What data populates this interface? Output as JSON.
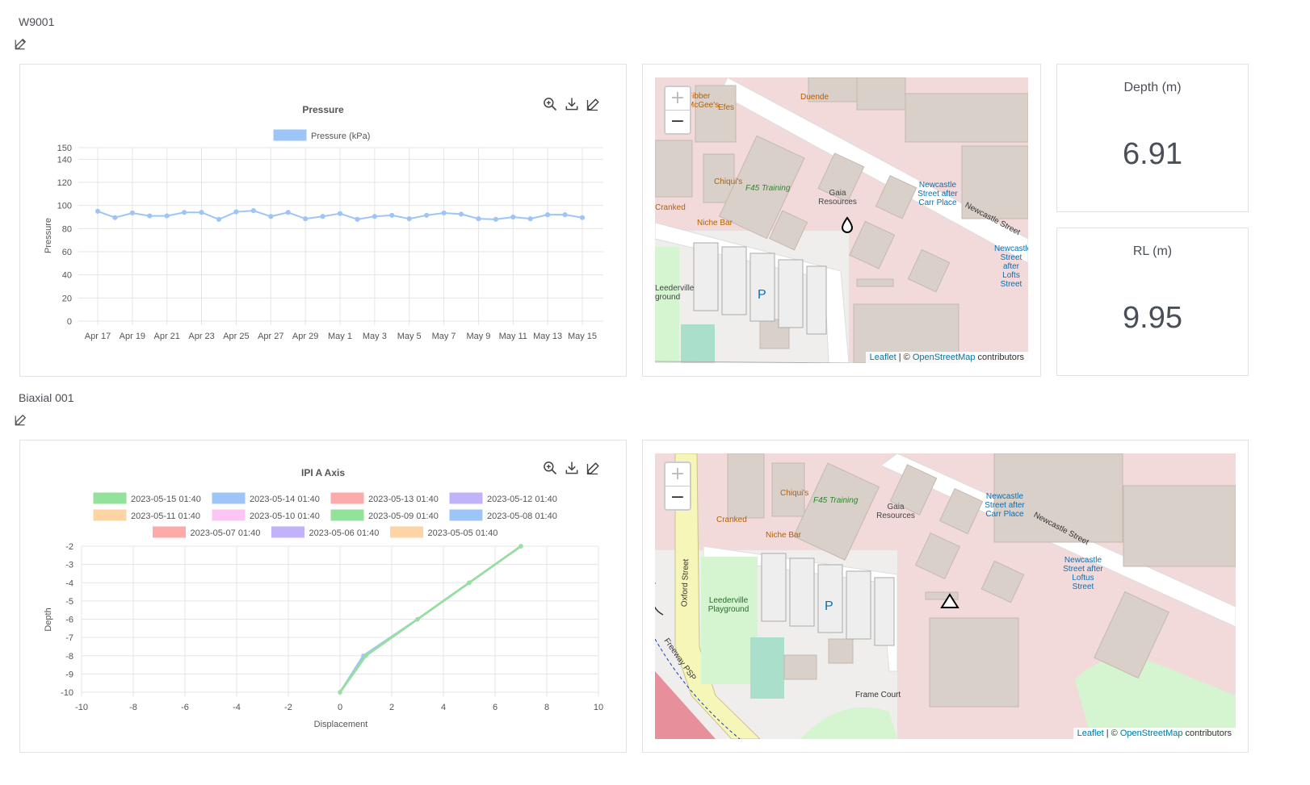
{
  "sections": [
    {
      "title": "W9001",
      "chart": {
        "title": "Pressure",
        "legend": "Pressure (kPa)",
        "ylabel": "Pressure",
        "map_attribution": {
          "leaflet": "Leaflet",
          "sep": " | © ",
          "osm": "OpenStreetMap",
          "suffix": " contributors"
        }
      },
      "stats": [
        {
          "label": "Depth (m)",
          "value": "6.91"
        },
        {
          "label": "RL (m)",
          "value": "9.95"
        }
      ]
    },
    {
      "title": "Biaxial 001",
      "chart": {
        "title": "IPI A Axis",
        "xlabel": "Displacement",
        "ylabel": "Depth"
      }
    }
  ],
  "map1_labels": {
    "gaia": "Gaia Resources",
    "newcastle": "Newcastle Street",
    "chiquis": "Chiqui's",
    "f45": "F45 Training",
    "niche": "Niche Bar",
    "duende": "Duende",
    "fibber": "Fibber McGee's",
    "efes": "Efes",
    "cranked": "Cranked",
    "leederville": "Leederville ground",
    "stop1": "Newcastle Street after Carr Place",
    "stop2": "Newcastle Street after Lofts Street",
    "parking": "P"
  },
  "map2_labels": {
    "gaia": "Gaia Resources",
    "newcastle": "Newcastle Street",
    "chiquis": "Chiqui's",
    "f45": "F45 Training",
    "niche": "Niche Bar",
    "cranked": "Cranked",
    "oxford": "Oxford Street",
    "playground": "Leederville Playground",
    "frame": "Frame Court",
    "freeway": "Freeway PSP",
    "stop1": "Newcastle Street after Carr Place",
    "stop2": "Newcastle Street after Loftus Street",
    "parking": "P"
  },
  "colors": {
    "series_blue": "#9ec5f8",
    "series_green": "#93e29b",
    "text": "#4a4f57",
    "border": "#dfe2e6"
  },
  "chart_data": [
    {
      "type": "line",
      "title": "Pressure",
      "ylabel": "Pressure",
      "x_ticks": [
        "Apr 17",
        "Apr 19",
        "Apr 21",
        "Apr 23",
        "Apr 25",
        "Apr 27",
        "Apr 29",
        "May 1",
        "May 3",
        "May 5",
        "May 7",
        "May 9",
        "May 11",
        "May 13",
        "May 15"
      ],
      "y_ticks": [
        0,
        20,
        40,
        60,
        80,
        100,
        120,
        140,
        150
      ],
      "ylim": [
        0,
        150
      ],
      "grid": true,
      "legend_position": "top",
      "series": [
        {
          "name": "Pressure (kPa)",
          "color": "#9ec5f8",
          "x": [
            "Apr 17",
            "Apr 18",
            "Apr 19",
            "Apr 20",
            "Apr 21",
            "Apr 22",
            "Apr 23",
            "Apr 24",
            "Apr 25",
            "Apr 26",
            "Apr 27",
            "Apr 28",
            "Apr 29",
            "Apr 30",
            "May 1",
            "May 2",
            "May 3",
            "May 4",
            "May 5",
            "May 6",
            "May 7",
            "May 8",
            "May 9",
            "May 10",
            "May 11",
            "May 12",
            "May 13",
            "May 14",
            "May 15"
          ],
          "values": [
            95,
            89.5,
            93.5,
            91,
            91,
            94,
            94,
            88,
            94.5,
            95.5,
            90.5,
            94,
            88.5,
            90.5,
            93,
            88,
            90.5,
            91.5,
            88.5,
            91.5,
            93.5,
            92.5,
            88.5,
            88,
            90,
            88.5,
            92,
            92,
            89.5
          ]
        }
      ]
    },
    {
      "type": "line",
      "title": "IPI A Axis",
      "xlabel": "Displacement",
      "ylabel": "Depth",
      "xlim": [
        -10,
        10
      ],
      "ylim": [
        -10,
        -2
      ],
      "x_ticks": [
        -10,
        -8,
        -6,
        -4,
        -2,
        0,
        2,
        4,
        6,
        8,
        10
      ],
      "y_ticks": [
        -2,
        -3,
        -4,
        -5,
        -6,
        -7,
        -8,
        -9,
        -10
      ],
      "grid": true,
      "legend_position": "top",
      "series": [
        {
          "name": "2023-05-15 01:40",
          "color": "#93e29b",
          "points": [
            [
              0,
              -10
            ],
            [
              1,
              -8
            ],
            [
              3,
              -6
            ],
            [
              5,
              -4
            ],
            [
              7,
              -2
            ]
          ]
        },
        {
          "name": "2023-05-14 01:40",
          "color": "#9ec5f8",
          "points": [
            [
              0,
              -10
            ],
            [
              1,
              -8
            ],
            [
              3,
              -6
            ],
            [
              5,
              -4
            ],
            [
              7,
              -2
            ]
          ]
        },
        {
          "name": "2023-05-13 01:40",
          "color": "#fcaaaa",
          "points": [
            [
              0,
              -10
            ],
            [
              1,
              -8
            ],
            [
              3,
              -6
            ],
            [
              5,
              -4
            ],
            [
              7,
              -2
            ]
          ]
        },
        {
          "name": "2023-05-12 01:40",
          "color": "#c2b2f9",
          "points": [
            [
              0,
              -10
            ],
            [
              1,
              -8
            ],
            [
              3,
              -6
            ],
            [
              5,
              -4
            ],
            [
              7,
              -2
            ]
          ]
        },
        {
          "name": "2023-05-11 01:40",
          "color": "#fdd4a4",
          "points": [
            [
              0,
              -10
            ],
            [
              1,
              -8
            ],
            [
              3,
              -6
            ],
            [
              5,
              -4
            ],
            [
              7,
              -2
            ]
          ]
        },
        {
          "name": "2023-05-10 01:40",
          "color": "#fcc6f4",
          "points": [
            [
              0,
              -10
            ],
            [
              1,
              -8
            ],
            [
              3,
              -6
            ],
            [
              5,
              -4
            ],
            [
              7,
              -2
            ]
          ]
        },
        {
          "name": "2023-05-09 01:40",
          "color": "#93e29b",
          "points": [
            [
              0,
              -10
            ],
            [
              1,
              -8
            ],
            [
              3,
              -6
            ],
            [
              5,
              -4
            ],
            [
              7,
              -2
            ]
          ]
        },
        {
          "name": "2023-05-08 01:40",
          "color": "#9ec5f8",
          "points": [
            [
              0,
              -10
            ],
            [
              0.9,
              -8
            ],
            [
              3,
              -6
            ],
            [
              5,
              -4
            ],
            [
              7,
              -2
            ]
          ]
        },
        {
          "name": "2023-05-07 01:40",
          "color": "#fcaaaa",
          "points": [
            [
              0,
              -10
            ],
            [
              1,
              -8
            ],
            [
              3,
              -6
            ],
            [
              5,
              -4
            ],
            [
              7,
              -2
            ]
          ]
        },
        {
          "name": "2023-05-06 01:40",
          "color": "#c2b2f9",
          "points": [
            [
              0,
              -10
            ],
            [
              1,
              -8
            ],
            [
              3,
              -6
            ],
            [
              5,
              -4
            ],
            [
              7,
              -2
            ]
          ]
        },
        {
          "name": "2023-05-05 01:40",
          "color": "#fdd4a4",
          "points": [
            [
              0,
              -10
            ],
            [
              1,
              -8
            ],
            [
              3,
              -6
            ],
            [
              5,
              -4
            ],
            [
              7,
              -2
            ]
          ]
        }
      ]
    }
  ]
}
